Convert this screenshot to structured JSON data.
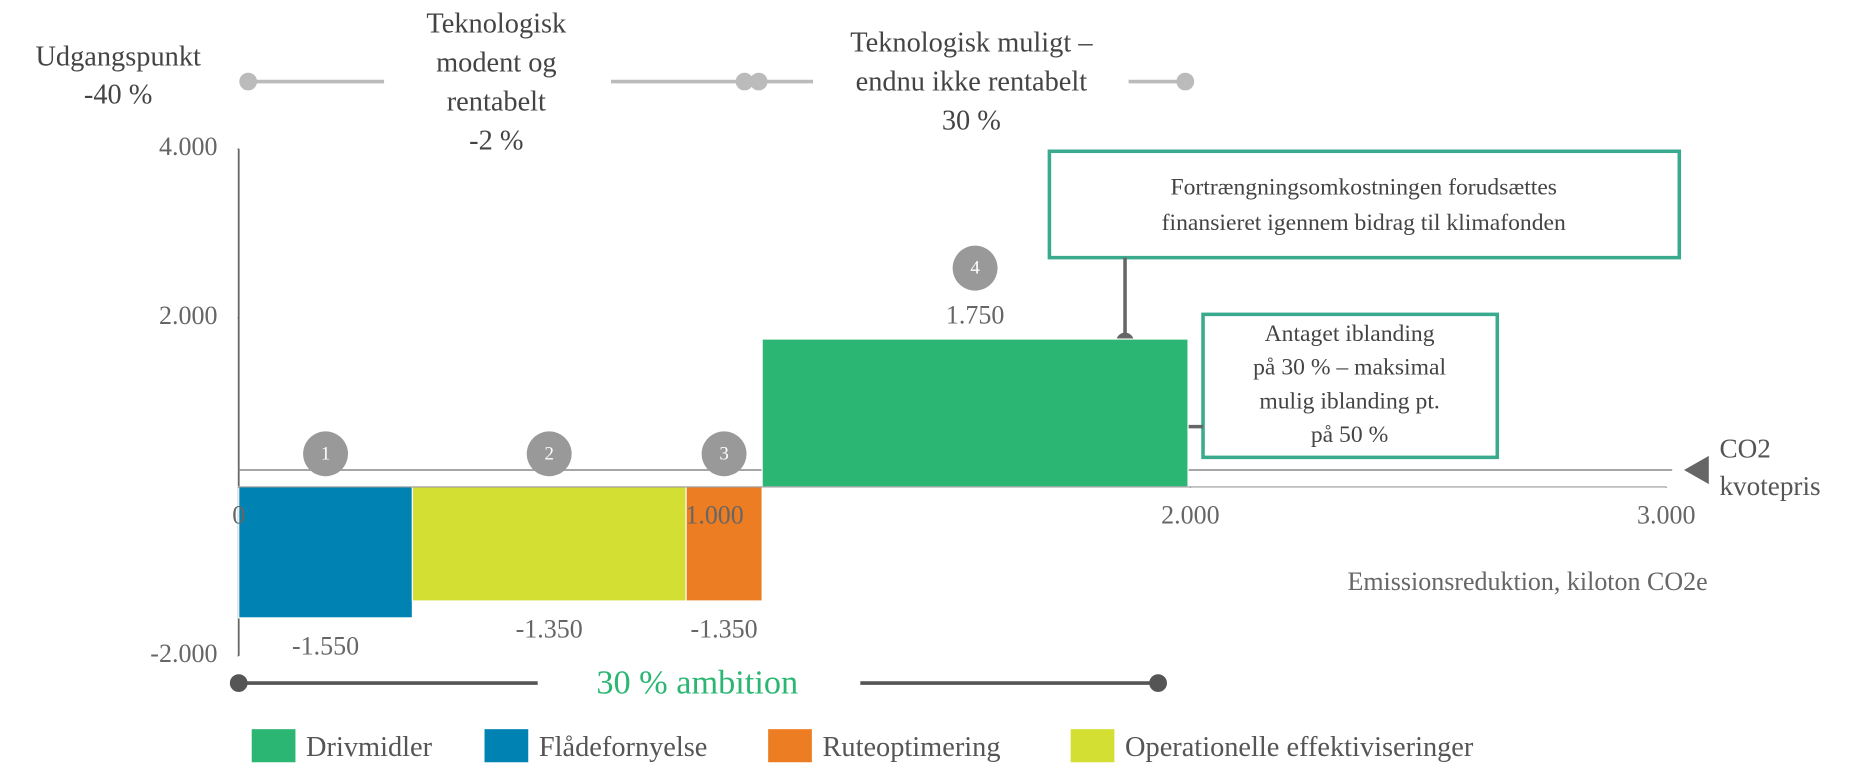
{
  "chart_data": {
    "type": "bar",
    "xlabel": "Emissionsreduktion, kiloton CO2e",
    "xlim": [
      0,
      3000
    ],
    "xticks": [
      0,
      {
        "value": 1000,
        "label": "1.000"
      },
      {
        "value": 2000,
        "label": "2.000"
      },
      {
        "value": 3000,
        "label": "3.000"
      }
    ],
    "ylim": [
      -2000,
      4000
    ],
    "yticks": [
      {
        "value": -2000,
        "label": "-2.000"
      },
      {
        "value": 2000,
        "label": "2.000"
      },
      {
        "value": 4000,
        "label": "4.000"
      }
    ],
    "grid": false,
    "series": [
      {
        "name": "Drivmidler",
        "color": "#2bb673",
        "x_edges": [
          1100,
          1995
        ],
        "values": [
          1750
        ],
        "value_labels": [
          "1.750"
        ],
        "badge": "4"
      },
      {
        "name": "Flådefornyelse",
        "color": "#0083b3",
        "x_edges": [
          0,
          365
        ],
        "values": [
          -1550
        ],
        "value_labels": [
          "-1.550"
        ],
        "badge": "1"
      },
      {
        "name": "Ruteoptimering",
        "color": "#ed7d22",
        "x_edges": [
          940,
          1100
        ],
        "values": [
          -1350
        ],
        "value_labels": [
          "-1.350"
        ],
        "badge": "3"
      },
      {
        "name": "Operationelle effektiviseringer",
        "color": "#d4df33",
        "x_edges": [
          365,
          940
        ],
        "values": [
          -1350
        ],
        "value_labels": [
          "-1.350"
        ],
        "badge": "2"
      }
    ],
    "reference_line": {
      "value": 200,
      "label_lines": [
        "CO2",
        "kvotepris"
      ]
    },
    "phases": [
      {
        "lines": [
          "Udgangspunkt",
          "-40 %"
        ]
      },
      {
        "lines": [
          "Teknologisk",
          "modent og",
          "rentabelt",
          "-2 %"
        ]
      },
      {
        "lines": [
          "Teknologisk muligt –",
          "endnu ikke rentabelt",
          "30 %"
        ]
      }
    ],
    "ambition": "30 % ambition",
    "annotations": [
      {
        "lines": [
          "Fortrængningsomkostningen forudsættes",
          "finansieret igennem bidrag til klimafonden"
        ]
      },
      {
        "lines": [
          "Antaget iblanding",
          "på 30 % – maksimal",
          "mulig iblanding pt.",
          "på 50 %"
        ]
      }
    ],
    "legend": "bottom"
  }
}
